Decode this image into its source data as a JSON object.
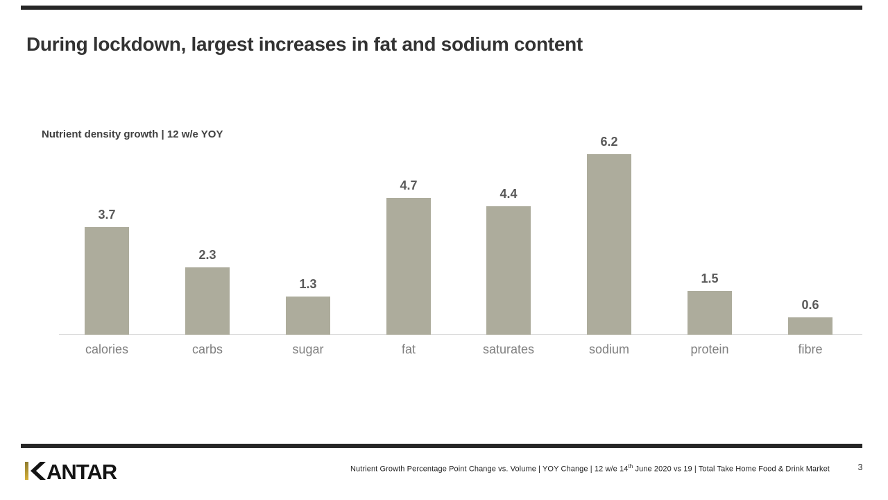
{
  "slide": {
    "title": "During lockdown, largest increases in fat and sodium content"
  },
  "chart": {
    "subtitle": "Nutrient density growth | 12 w/e YOY"
  },
  "chart_data": {
    "type": "bar",
    "title": "Nutrient density growth | 12 w/e YOY",
    "categories": [
      "calories",
      "carbs",
      "sugar",
      "fat",
      "saturates",
      "sodium",
      "protein",
      "fibre"
    ],
    "values": [
      3.7,
      2.3,
      1.3,
      4.7,
      4.4,
      6.2,
      1.5,
      0.6
    ],
    "value_labels": [
      "3.7",
      "2.3",
      "1.3",
      "4.7",
      "4.4",
      "6.2",
      "1.5",
      "0.6"
    ],
    "xlabel": "",
    "ylabel": "",
    "ylim": [
      0,
      6.8
    ],
    "grid": false,
    "legend": false,
    "bar_color": "#ADAC9C",
    "value_label_color": "#595959",
    "category_label_color": "#7F7F7F",
    "axis_line_color": "#D9D9D9"
  },
  "footer": {
    "logo_text": "KANTAR",
    "logo_gold": "#C9A227",
    "footnote_prefix": "Nutrient  Growth Percentage Point Change  vs. Volume | YOY Change  | 12 w/e 14",
    "footnote_sup": "th",
    "footnote_suffix": " June 2020 vs 19 | Total Take Home  Food & Drink Market",
    "page_number": "3"
  },
  "colors": {
    "rule": "#262626",
    "title": "#333333",
    "subtitle": "#404040"
  }
}
